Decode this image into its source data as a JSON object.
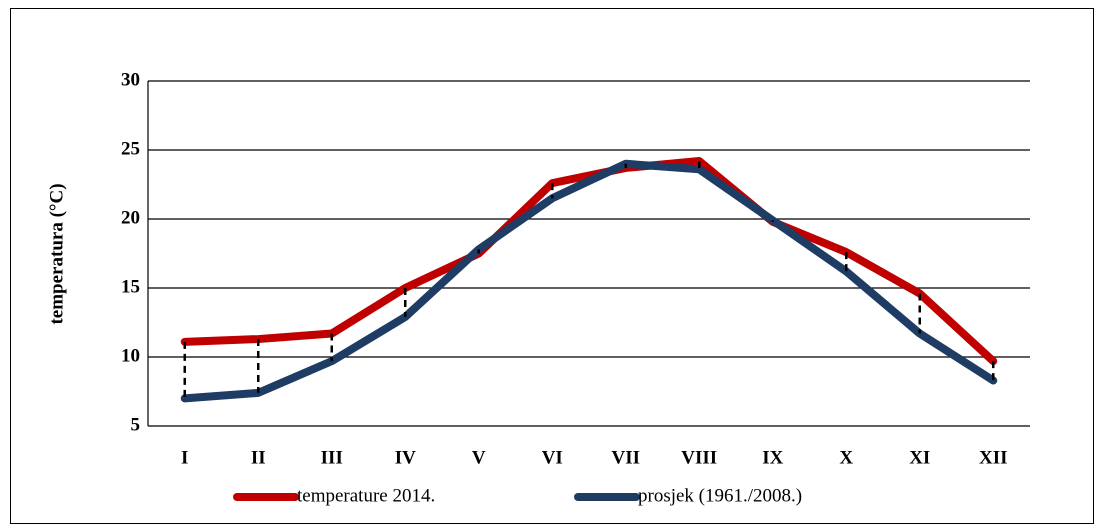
{
  "chart_data": {
    "type": "line",
    "y_label": "temperatura (°C)",
    "categories": [
      "I",
      "II",
      "III",
      "IV",
      "V",
      "VI",
      "VII",
      "VIII",
      "IX",
      "X",
      "XI",
      "XII"
    ],
    "series": [
      {
        "name": "temperature 2014.",
        "color": "#c00000",
        "values": [
          11.1,
          11.3,
          11.7,
          15.0,
          17.5,
          22.6,
          23.7,
          24.2,
          19.8,
          17.6,
          14.6,
          9.7
        ]
      },
      {
        "name": "prosjek (1961./2008.)",
        "color": "#1f3c64",
        "values": [
          7.0,
          7.4,
          9.7,
          12.9,
          17.8,
          21.5,
          24.0,
          23.6,
          19.9,
          16.2,
          11.7,
          8.3
        ]
      }
    ],
    "ylim": [
      5,
      30
    ],
    "yticks": [
      5,
      10,
      15,
      20,
      25,
      30
    ],
    "grid": true,
    "legend": "bottom",
    "drop_lines": true
  }
}
